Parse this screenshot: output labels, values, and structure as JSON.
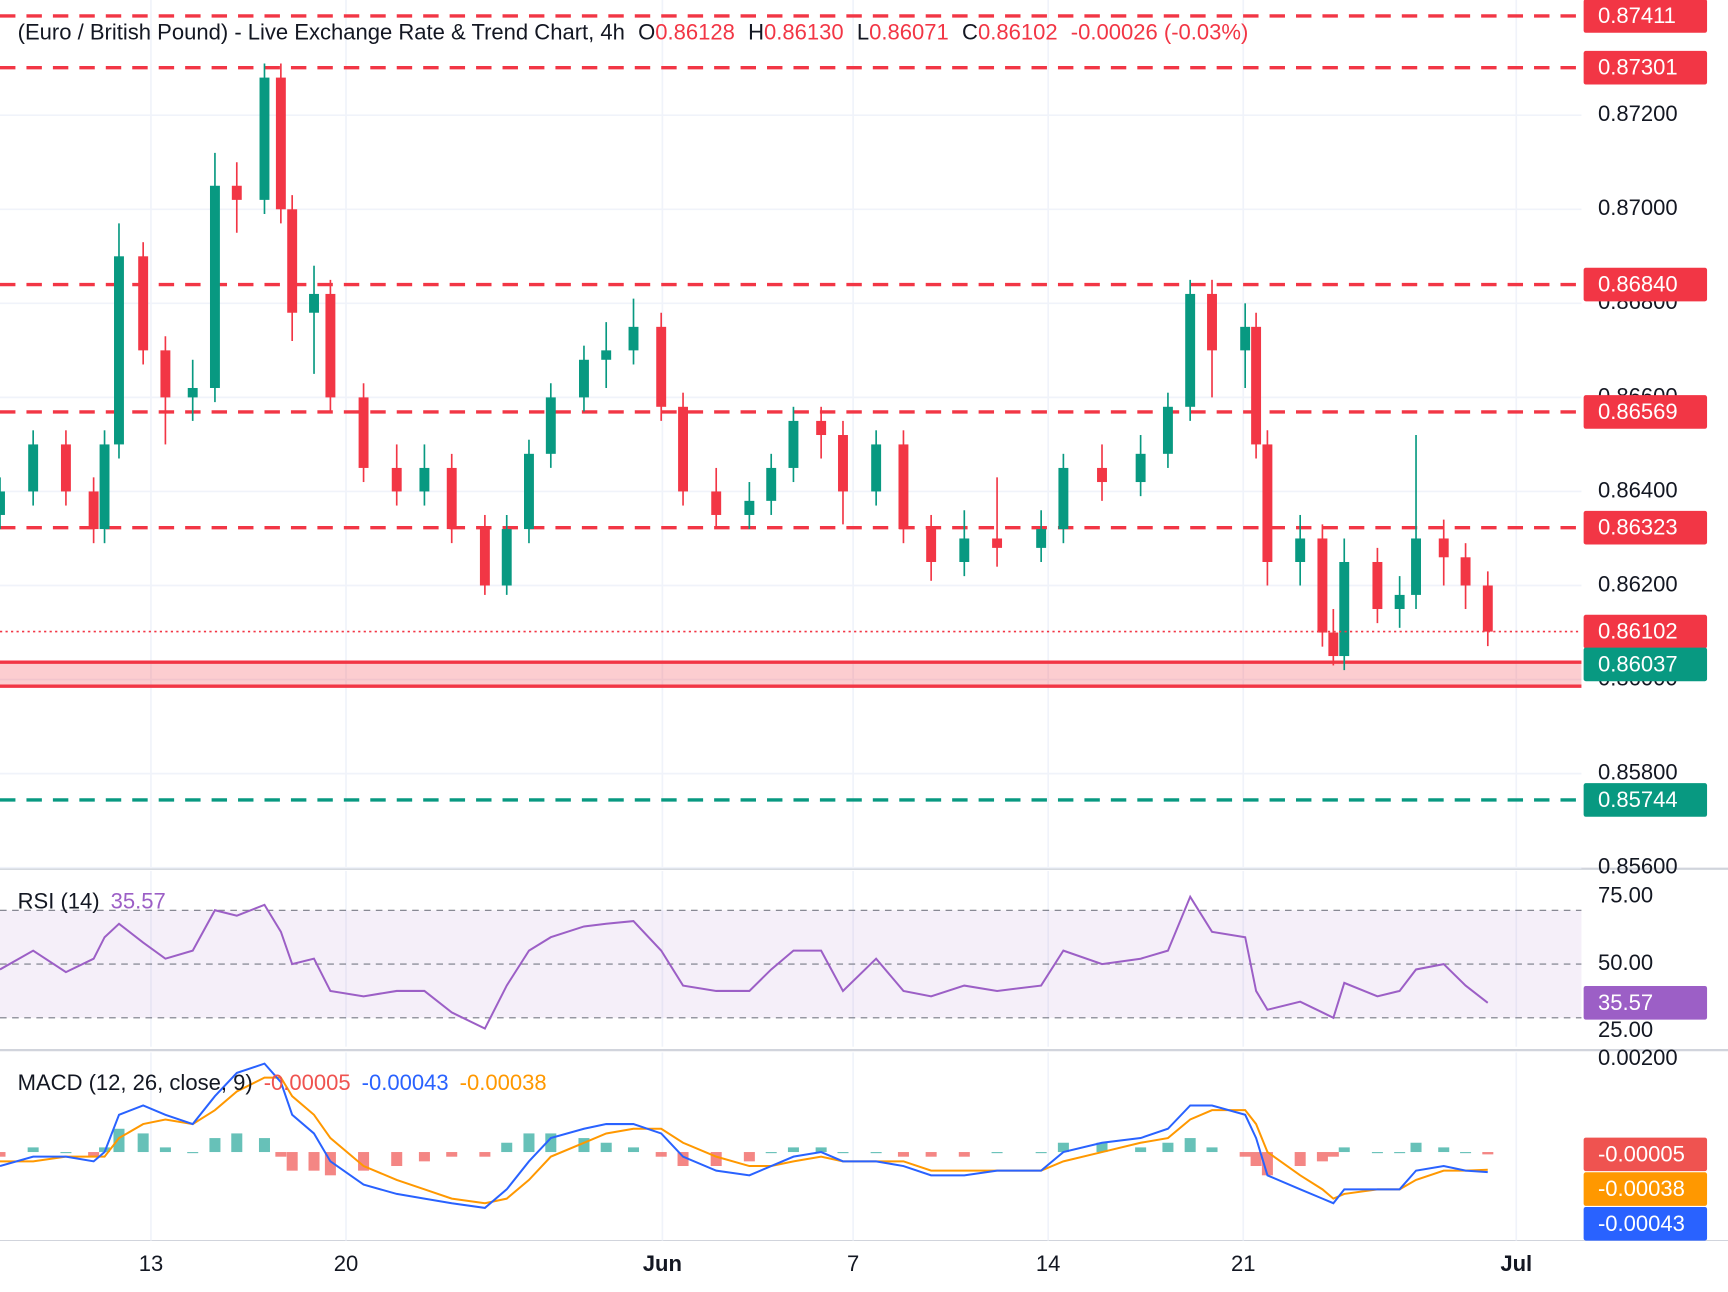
{
  "chart_data": [
    {
      "type": "candlestick",
      "header": {
        "title": "(Euro / British Pound) - Live Exchange Rate & Trend Chart, 4h",
        "items": [
          {
            "key": "O",
            "value": 0.86128
          },
          {
            "key": "H",
            "value": 0.8613
          },
          {
            "key": "L",
            "value": 0.86071
          },
          {
            "key": "C",
            "value": 0.86102
          }
        ],
        "item_labels": [
          "0.86128",
          "0.86130",
          "0.86071",
          "0.86102"
        ],
        "change": "-0.00026 (-0.03%)"
      },
      "up_color": "#089981",
      "down_color": "#f23645",
      "x": [
        -3.87,
        -3.02,
        -2.18,
        -1.47,
        -1.19,
        -0.82,
        -0.2,
        0.37,
        1.07,
        1.64,
        2.2,
        2.91,
        3.33,
        3.62,
        4.18,
        4.6,
        5.45,
        6.3,
        7.01,
        7.71,
        8.56,
        9.12,
        9.69,
        10.25,
        11.1,
        11.67,
        12.37,
        13.08,
        13.64,
        14.49,
        15.34,
        15.9,
        16.47,
        17.18,
        17.74,
        18.59,
        19.29,
        20,
        20.85,
        21.69,
        22.82,
        23.39,
        24.38,
        25.37,
        26.07,
        26.64,
        27.2,
        28.05,
        28.33,
        28.62,
        29.46,
        30.03,
        30.31,
        30.59,
        31.44,
        32.01,
        32.43,
        33.14,
        33.7,
        34.27
      ],
      "open": [
        0.8635,
        0.864,
        0.865,
        0.864,
        0.8632,
        0.865,
        0.869,
        0.867,
        0.866,
        0.8662,
        0.8705,
        0.8702,
        0.8728,
        0.87,
        0.8678,
        0.8682,
        0.866,
        0.8645,
        0.864,
        0.8645,
        0.8632,
        0.862,
        0.8632,
        0.8648,
        0.866,
        0.8668,
        0.867,
        0.8675,
        0.8658,
        0.864,
        0.8635,
        0.8638,
        0.8645,
        0.8655,
        0.8652,
        0.864,
        0.865,
        0.8632,
        0.8625,
        0.863,
        0.8628,
        0.8632,
        0.8645,
        0.8642,
        0.8648,
        0.8658,
        0.8682,
        0.867,
        0.8675,
        0.865,
        0.8625,
        0.863,
        0.861,
        0.8605,
        0.8625,
        0.8615,
        0.8618,
        0.863,
        0.8626,
        0.862
      ],
      "high": [
        0.8643,
        0.8653,
        0.8653,
        0.8643,
        0.8653,
        0.8697,
        0.8693,
        0.8673,
        0.8668,
        0.8712,
        0.871,
        0.8731,
        0.8731,
        0.8703,
        0.8688,
        0.8685,
        0.8663,
        0.865,
        0.865,
        0.8648,
        0.8635,
        0.8635,
        0.8651,
        0.8663,
        0.8671,
        0.8676,
        0.8681,
        0.8678,
        0.8661,
        0.8645,
        0.8642,
        0.8648,
        0.8658,
        0.8658,
        0.8655,
        0.8653,
        0.8653,
        0.8635,
        0.8636,
        0.8643,
        0.8636,
        0.8648,
        0.865,
        0.8652,
        0.8661,
        0.8685,
        0.8685,
        0.868,
        0.8678,
        0.8653,
        0.8635,
        0.8633,
        0.8615,
        0.863,
        0.8628,
        0.8622,
        0.8652,
        0.8634,
        0.8629,
        0.8623
      ],
      "low": [
        0.8632,
        0.8637,
        0.8637,
        0.8629,
        0.8629,
        0.8647,
        0.8667,
        0.865,
        0.8655,
        0.8659,
        0.8695,
        0.8699,
        0.8697,
        0.8672,
        0.8665,
        0.8657,
        0.8642,
        0.8637,
        0.8637,
        0.8629,
        0.8618,
        0.8618,
        0.8629,
        0.8645,
        0.8657,
        0.8662,
        0.8667,
        0.8655,
        0.8637,
        0.8632,
        0.8632,
        0.8635,
        0.8642,
        0.8647,
        0.8633,
        0.8637,
        0.8629,
        0.8621,
        0.8622,
        0.8624,
        0.8625,
        0.8629,
        0.8638,
        0.8639,
        0.8645,
        0.8655,
        0.866,
        0.8662,
        0.8647,
        0.862,
        0.862,
        0.8607,
        0.8603,
        0.8602,
        0.8612,
        0.8611,
        0.8615,
        0.862,
        0.8615,
        0.86071
      ],
      "close": [
        0.864,
        0.865,
        0.864,
        0.8632,
        0.865,
        0.869,
        0.867,
        0.866,
        0.8662,
        0.8705,
        0.8702,
        0.8728,
        0.87,
        0.8678,
        0.8682,
        0.866,
        0.8645,
        0.864,
        0.8645,
        0.8632,
        0.862,
        0.8632,
        0.8648,
        0.866,
        0.8668,
        0.867,
        0.8675,
        0.8658,
        0.864,
        0.8635,
        0.8638,
        0.8645,
        0.8655,
        0.8652,
        0.864,
        0.865,
        0.8632,
        0.8625,
        0.863,
        0.8628,
        0.8632,
        0.8645,
        0.8642,
        0.8648,
        0.8658,
        0.8682,
        0.867,
        0.8675,
        0.865,
        0.8625,
        0.863,
        0.861,
        0.8605,
        0.8625,
        0.8615,
        0.8618,
        0.863,
        0.8626,
        0.862,
        0.86102
      ],
      "xlim": [
        -3.87,
        36.67
      ],
      "xticks": [
        {
          "value": 0,
          "label": "13"
        },
        {
          "value": 5,
          "label": "20"
        },
        {
          "value": 13.11,
          "label": "Jun"
        },
        {
          "value": 18,
          "label": "7"
        },
        {
          "value": 23,
          "label": "14"
        },
        {
          "value": 28,
          "label": "21"
        },
        {
          "value": 35,
          "label": "Jul"
        }
      ],
      "ylim": [
        0.856,
        0.87445
      ],
      "yticks": [
        {
          "value": 0.872,
          "label": "0.87200"
        },
        {
          "value": 0.87,
          "label": "0.87000"
        },
        {
          "value": 0.868,
          "label": "0.86800"
        },
        {
          "value": 0.866,
          "label": "0.86600"
        },
        {
          "value": 0.864,
          "label": "0.86400"
        },
        {
          "value": 0.862,
          "label": "0.86200"
        },
        {
          "value": 0.86,
          "label": "0.86000"
        },
        {
          "value": 0.858,
          "label": "0.85800"
        },
        {
          "value": 0.856,
          "label": "0.85600"
        }
      ],
      "grid": true,
      "levels": [
        {
          "value": 0.87411,
          "label": "0.87411",
          "color": "#f23645"
        },
        {
          "value": 0.87301,
          "label": "0.87301",
          "color": "#f23645"
        },
        {
          "value": 0.8684,
          "label": "0.86840",
          "color": "#f23645"
        },
        {
          "value": 0.86569,
          "label": "0.86569",
          "color": "#f23645"
        },
        {
          "value": 0.86323,
          "label": "0.86323",
          "color": "#f23645"
        },
        {
          "value": 0.85744,
          "label": "0.85744",
          "color": "#089981"
        }
      ],
      "support_zone": {
        "low": 0.85986,
        "high": 0.86037,
        "color": "#f23645",
        "label_color": "#089981"
      },
      "last_price_color": "#f23645"
    },
    {
      "type": "rsi",
      "title": "RSI (14)",
      "color": "#9c5fc6",
      "current": 35.57,
      "values": [
        48,
        55,
        47,
        52,
        60,
        65,
        58,
        52,
        55,
        70,
        68,
        72,
        62,
        50,
        52,
        40,
        38,
        40,
        40,
        32,
        26,
        42,
        55,
        60,
        64,
        65,
        66,
        55,
        42,
        40,
        40,
        48,
        55,
        55,
        40,
        52,
        40,
        38,
        42,
        40,
        42,
        55,
        50,
        52,
        55,
        75,
        62,
        60,
        40,
        33,
        36,
        32,
        30,
        43,
        38,
        40,
        48,
        50,
        42,
        35.57
      ],
      "ylim": [
        19.2,
        84.6
      ],
      "yticks": [
        {
          "value": 75,
          "label": "75.00"
        },
        {
          "value": 50,
          "label": "50.00"
        },
        {
          "value": 25,
          "label": "25.00"
        }
      ],
      "bands": [
        30,
        50,
        70
      ]
    },
    {
      "type": "macd",
      "title": "MACD (12, 26, close, 9)",
      "macd": [
        -0.0003,
        -0.0001,
        -0.0001,
        -0.0002,
        0,
        0.0008,
        0.001,
        0.0008,
        0.0006,
        0.0012,
        0.0017,
        0.0019,
        0.0015,
        0.0008,
        0.0004,
        -0.0002,
        -0.0007,
        -0.0009,
        -0.001,
        -0.0011,
        -0.0012,
        -0.0008,
        -0.0002,
        0.0003,
        0.0005,
        0.0006,
        0.0006,
        0.0004,
        -0.0001,
        -0.0004,
        -0.0005,
        -0.0003,
        -0.0001,
        0,
        -0.0002,
        -0.0002,
        -0.0003,
        -0.0005,
        -0.0005,
        -0.0004,
        -0.0004,
        0,
        0.0002,
        0.0003,
        0.0005,
        0.001,
        0.001,
        0.0008,
        0.0003,
        -0.0005,
        -0.0008,
        -0.001,
        -0.0011,
        -0.0008,
        -0.0008,
        -0.0008,
        -0.0004,
        -0.0003,
        -0.0004,
        -0.00043
      ],
      "signal": [
        -0.0002,
        -0.0002,
        -0.0001,
        -0.0001,
        -0.0001,
        0.0003,
        0.0006,
        0.0007,
        0.0006,
        0.0009,
        0.0013,
        0.0016,
        0.0016,
        0.0012,
        0.0008,
        0.0003,
        -0.0003,
        -0.0006,
        -0.0008,
        -0.001,
        -0.0011,
        -0.001,
        -0.0006,
        -0.0001,
        0.0002,
        0.0004,
        0.0005,
        0.0005,
        0.0002,
        -0.0001,
        -0.0003,
        -0.0003,
        -0.0002,
        -0.0001,
        -0.0002,
        -0.0002,
        -0.0002,
        -0.0004,
        -0.0004,
        -0.0004,
        -0.0004,
        -0.0002,
        0,
        0.0002,
        0.0003,
        0.0007,
        0.0009,
        0.0009,
        0.0006,
        0,
        -0.0005,
        -0.0008,
        -0.001,
        -0.0009,
        -0.0008,
        -0.0008,
        -0.0006,
        -0.0004,
        -0.0004,
        -0.00038
      ],
      "histogram": [
        -0.0001,
        0.0001,
        0,
        -0.0001,
        0.0001,
        0.0005,
        0.0004,
        0.0001,
        0,
        0.0003,
        0.0004,
        0.0003,
        -0.0001,
        -0.0004,
        -0.0004,
        -0.0005,
        -0.0004,
        -0.0003,
        -0.0002,
        -0.0001,
        -0.0001,
        0.0002,
        0.0004,
        0.0004,
        0.0003,
        0.0002,
        0.0001,
        -0.0001,
        -0.0003,
        -0.0003,
        -0.0002,
        0,
        0.0001,
        0.0001,
        0,
        0,
        -0.0001,
        -0.0001,
        -0.0001,
        0,
        0,
        0.0002,
        0.0002,
        0.0001,
        0.0002,
        0.0003,
        0.0001,
        -0.0001,
        -0.0003,
        -0.0005,
        -0.0003,
        -0.0002,
        -0.0001,
        0.0001,
        0,
        0,
        0.0002,
        0.0001,
        0,
        -5e-05
      ],
      "macd_color": "#2962ff",
      "signal_color": "#ff9800",
      "hist_up_color": "#26a69a",
      "hist_down_color": "#ef5350",
      "ylim": [
        -0.0019,
        0.00214
      ],
      "yticks": [
        {
          "value": 0.002,
          "label": "0.00200"
        }
      ]
    }
  ]
}
